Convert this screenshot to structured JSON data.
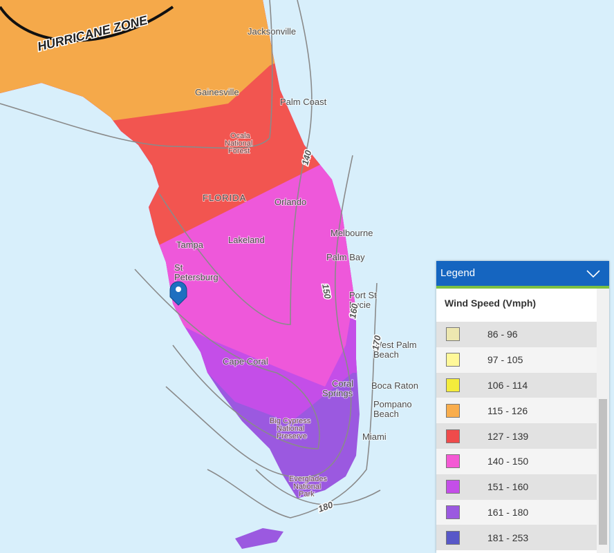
{
  "map": {
    "zone": "HURRICANE ZONE",
    "places": [
      {
        "lines": [
          "Jacksonville"
        ]
      },
      {
        "lines": [
          "Gainesville"
        ]
      },
      {
        "lines": [
          "Palm Coast"
        ]
      },
      {
        "lines": [
          "Ocala",
          "National",
          "Forest"
        ]
      },
      {
        "lines": [
          "FLORIDA"
        ]
      },
      {
        "lines": [
          "Orlando"
        ]
      },
      {
        "lines": [
          "Lakeland"
        ]
      },
      {
        "lines": [
          "Tampa"
        ]
      },
      {
        "lines": [
          "St",
          "Petersburg"
        ]
      },
      {
        "lines": [
          "Melbourne"
        ]
      },
      {
        "lines": [
          "Palm Bay"
        ]
      },
      {
        "lines": [
          "Port St",
          "Lucie"
        ]
      },
      {
        "lines": [
          "West Palm",
          "Beach"
        ]
      },
      {
        "lines": [
          "Cape Coral"
        ]
      },
      {
        "lines": [
          "Coral",
          "Springs"
        ]
      },
      {
        "lines": [
          "Boca Raton"
        ]
      },
      {
        "lines": [
          "Pompano",
          "Beach"
        ]
      },
      {
        "lines": [
          "Miami"
        ]
      },
      {
        "lines": [
          "Big Cypress",
          "National",
          "Preserve"
        ]
      },
      {
        "lines": [
          "Everglades",
          "National",
          "Park"
        ]
      }
    ],
    "contours": [
      140,
      150,
      160,
      170,
      180
    ]
  },
  "legend": {
    "title": "Legend",
    "subtitle": "Wind Speed (Vmph)",
    "items": [
      {
        "label": "86 - 96",
        "color": "#ede7b0"
      },
      {
        "label": "97 - 105",
        "color": "#fff899"
      },
      {
        "label": "106 - 114",
        "color": "#f4ec3c"
      },
      {
        "label": "115 - 126",
        "color": "#f9ad4c"
      },
      {
        "label": "127 - 139",
        "color": "#ef4b4b"
      },
      {
        "label": "140 - 150",
        "color": "#f459d4"
      },
      {
        "label": "151 - 160",
        "color": "#c44ee8"
      },
      {
        "label": "161 - 180",
        "color": "#9b59e0"
      },
      {
        "label": "181 - 253",
        "color": "#5858c8"
      }
    ]
  }
}
